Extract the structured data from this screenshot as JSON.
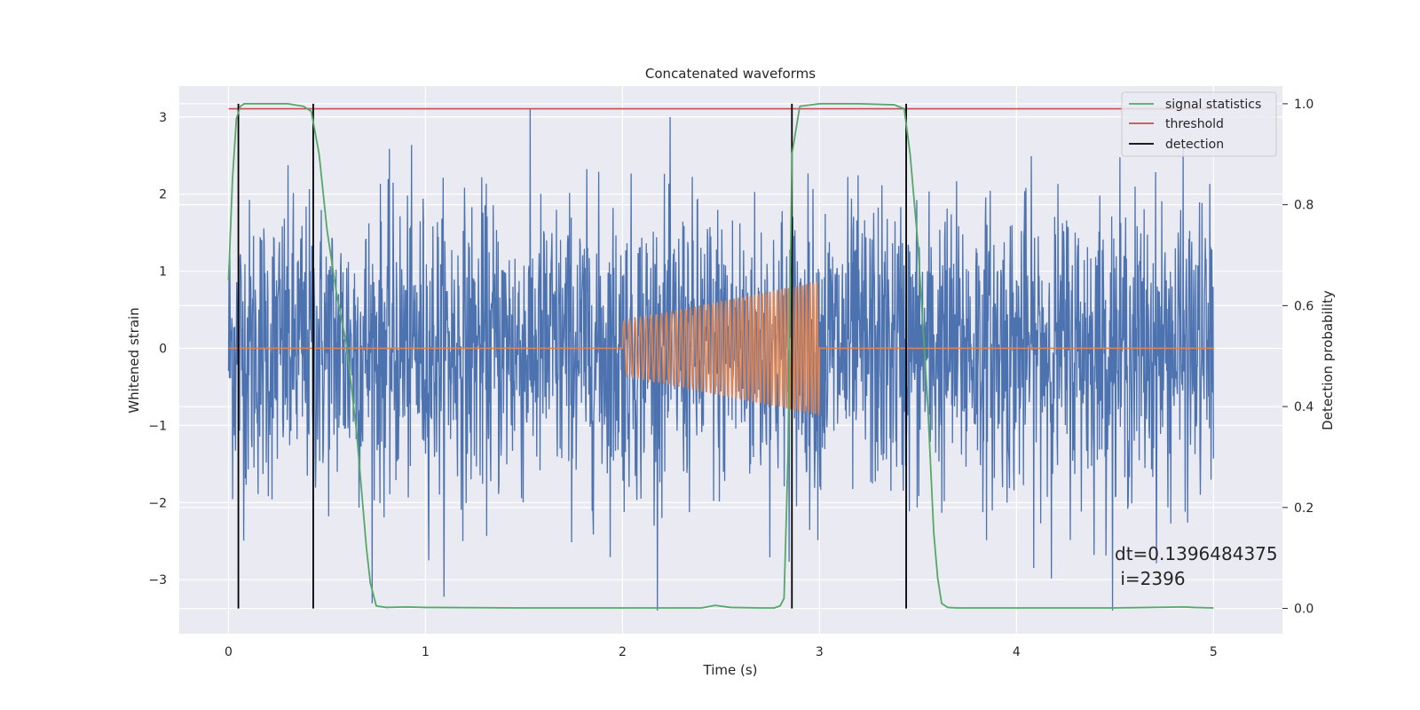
{
  "chart_data": {
    "type": "line",
    "title": "Concatenated waveforms",
    "xlabel": "Time (s)",
    "ylabel": "Whitened strain",
    "ylabel_right": "Detection probability",
    "xlim": [
      -0.25,
      5.35
    ],
    "ylim": [
      -3.7,
      3.4
    ],
    "ylim_right": [
      -0.05,
      1.035
    ],
    "xticks": [
      0,
      1,
      2,
      3,
      4,
      5
    ],
    "yticks": [
      -3,
      -2,
      -1,
      0,
      1,
      2,
      3
    ],
    "yticks_right": [
      0.0,
      0.2,
      0.4,
      0.6,
      0.8,
      1.0
    ],
    "ytick_labels": [
      "−3",
      "−2",
      "−1",
      "0",
      "1",
      "2",
      "3"
    ],
    "ytick_labels_right": [
      "0.0",
      "0.2",
      "0.4",
      "0.6",
      "0.8",
      "1.0"
    ],
    "grid": true,
    "legend_position": "top-right",
    "colors": {
      "background": "#eaeaf2",
      "grid": "#ffffff",
      "strain": "#4c72b0",
      "injection": "#dd8452",
      "statistics": "#55a868",
      "threshold": "#c44e52",
      "detection": "#000000"
    },
    "series": [
      {
        "name": "",
        "key": "strain",
        "axis": "left",
        "description_values": "whitened noise, roughly zero-mean, amplitude up to about ±3 s.d.",
        "x_range": [
          0,
          5
        ],
        "envelope": [
          -3.4,
          3.1
        ]
      },
      {
        "name": "",
        "key": "injection",
        "axis": "left",
        "x": [
          0,
          2.0,
          2.0,
          3.0,
          3.0,
          5.0
        ],
        "chirp_start": 2.0,
        "chirp_end": 3.0,
        "chirp_amp_start": 0.35,
        "chirp_amp_end": 0.87,
        "chirp_cycles": 46
      },
      {
        "name": "signal statistics",
        "key": "statistics",
        "axis": "right",
        "x": [
          0.0,
          0.02,
          0.04,
          0.06,
          0.08,
          0.12,
          0.2,
          0.3,
          0.38,
          0.42,
          0.46,
          0.5,
          0.55,
          0.6,
          0.65,
          0.7,
          0.72,
          0.75,
          0.8,
          0.9,
          1.0,
          1.5,
          2.0,
          2.4,
          2.47,
          2.55,
          2.7,
          2.77,
          2.8,
          2.82,
          2.84,
          2.86,
          2.9,
          3.0,
          3.2,
          3.38,
          3.43,
          3.46,
          3.5,
          3.55,
          3.58,
          3.6,
          3.62,
          3.65,
          3.7,
          4.0,
          4.5,
          4.85,
          4.9,
          5.0
        ],
        "values": [
          0.65,
          0.85,
          0.97,
          0.995,
          1.0,
          1.0,
          1.0,
          1.0,
          0.995,
          0.985,
          0.9,
          0.75,
          0.62,
          0.52,
          0.35,
          0.12,
          0.05,
          0.005,
          0.002,
          0.003,
          0.002,
          0.001,
          0.001,
          0.001,
          0.006,
          0.002,
          0.001,
          0.001,
          0.005,
          0.02,
          0.3,
          0.9,
          0.995,
          1.0,
          1.0,
          0.998,
          0.99,
          0.9,
          0.72,
          0.4,
          0.15,
          0.06,
          0.01,
          0.002,
          0.001,
          0.001,
          0.001,
          0.003,
          0.002,
          0.001
        ]
      },
      {
        "name": "threshold",
        "key": "threshold",
        "axis": "right",
        "x": [
          0,
          5
        ],
        "values": [
          0.99,
          0.99
        ]
      },
      {
        "name": "detection",
        "key": "detection",
        "axis": "right",
        "x": [
          0.05,
          0.43,
          2.86,
          3.44
        ],
        "range": [
          0.0,
          1.0
        ]
      }
    ],
    "legend": [
      "signal statistics",
      "threshold",
      "detection"
    ],
    "annotations": [
      "dt=0.1396484375",
      " i=2396"
    ]
  }
}
